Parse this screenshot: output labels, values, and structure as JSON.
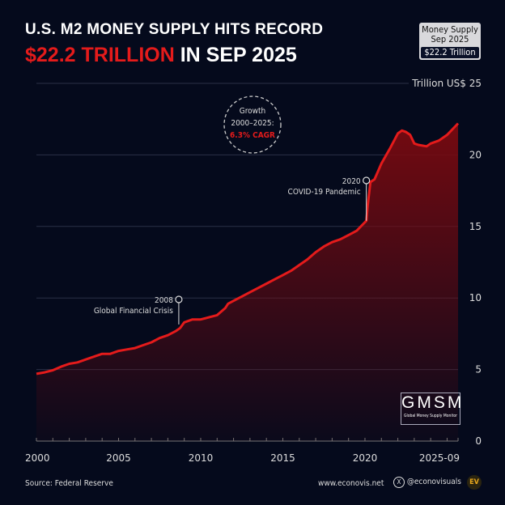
{
  "header": {
    "title_line1": "U.S. M2 MONEY SUPPLY HITS RECORD",
    "title_highlight": "$22.2 TRILLION",
    "title_rest": " IN SEP 2025"
  },
  "badge": {
    "line1": "Money Supply",
    "line2": "Sep 2025",
    "value": "$22.2 Trillion"
  },
  "footer": {
    "source": "Source: Federal Reserve",
    "website": "www.econovis.net",
    "handle": "@econovisuals",
    "logo": "EV"
  },
  "watermark": {
    "title": "GMSM",
    "subtitle": "Global Money Supply Monitor"
  },
  "colors": {
    "background": "#050a1c",
    "line": "#e41b1b",
    "fill": "#7a0a10",
    "accent": "#e41b1b"
  },
  "chart_data": {
    "type": "area",
    "title": "U.S. M2 MONEY SUPPLY HITS RECORD",
    "subtitle": "$22.2 TRILLION IN SEP 2025",
    "ylabel": "Trillion US$",
    "ylim": [
      0,
      25
    ],
    "yticks": [
      0,
      5,
      10,
      15,
      20,
      25
    ],
    "xticks": [
      "2000",
      "2005",
      "2010",
      "2015",
      "2020",
      "2025-09"
    ],
    "xlim": [
      "2000-01",
      "2025-09"
    ],
    "grid": "horizontal",
    "x": [
      "2000-01",
      "2000-07",
      "2001-01",
      "2001-07",
      "2002-01",
      "2002-07",
      "2003-01",
      "2003-07",
      "2004-01",
      "2004-07",
      "2005-01",
      "2005-07",
      "2006-01",
      "2006-07",
      "2007-01",
      "2007-07",
      "2008-01",
      "2008-07",
      "2008-10",
      "2009-01",
      "2009-07",
      "2010-01",
      "2010-07",
      "2011-01",
      "2011-07",
      "2011-09",
      "2012-01",
      "2012-07",
      "2013-01",
      "2013-07",
      "2014-01",
      "2014-07",
      "2015-01",
      "2015-07",
      "2016-01",
      "2016-07",
      "2017-01",
      "2017-07",
      "2018-01",
      "2018-07",
      "2019-01",
      "2019-07",
      "2020-01",
      "2020-02",
      "2020-03",
      "2020-05",
      "2020-08",
      "2021-01",
      "2021-07",
      "2022-01",
      "2022-04",
      "2022-07",
      "2022-10",
      "2023-01",
      "2023-04",
      "2023-10",
      "2024-01",
      "2024-07",
      "2025-01",
      "2025-05",
      "2025-09"
    ],
    "values": [
      4.7,
      4.8,
      4.95,
      5.2,
      5.4,
      5.5,
      5.7,
      5.9,
      6.1,
      6.1,
      6.3,
      6.4,
      6.5,
      6.7,
      6.9,
      7.2,
      7.4,
      7.7,
      7.9,
      8.3,
      8.5,
      8.5,
      8.65,
      8.8,
      9.3,
      9.6,
      9.8,
      10.1,
      10.4,
      10.7,
      11.0,
      11.3,
      11.6,
      11.9,
      12.3,
      12.7,
      13.2,
      13.6,
      13.9,
      14.1,
      14.4,
      14.7,
      15.3,
      15.4,
      16.5,
      18.1,
      18.3,
      19.4,
      20.4,
      21.5,
      21.7,
      21.6,
      21.4,
      20.8,
      20.7,
      20.6,
      20.8,
      21.0,
      21.4,
      21.8,
      22.2
    ],
    "annotations": [
      {
        "x": "2008-09",
        "label_year": "2008",
        "label_text": "Global Financial Crisis"
      },
      {
        "x": "2020-02",
        "label_year": "2020",
        "label_text": "COVID-19 Pandemic"
      },
      {
        "circle_line1": "Growth",
        "circle_line2": "2000–2025:",
        "circle_value": "6.3% CAGR"
      }
    ]
  }
}
